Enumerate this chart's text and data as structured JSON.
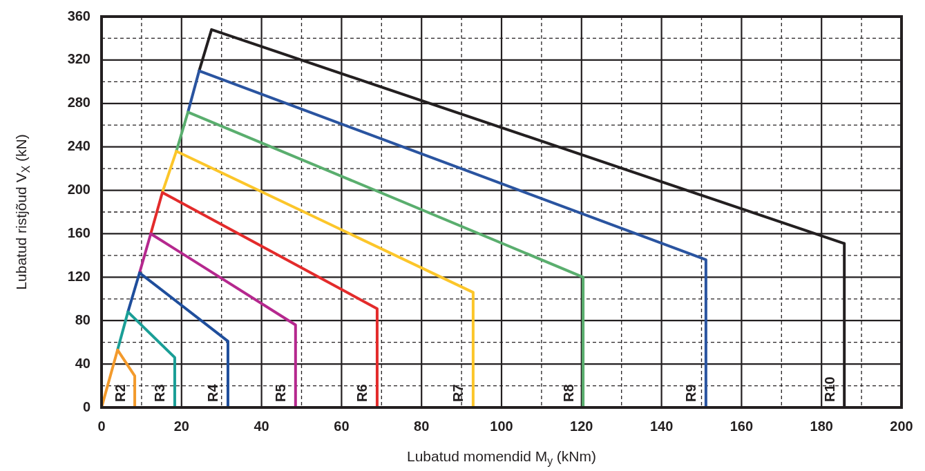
{
  "chart_data": {
    "type": "line",
    "xlabel": "Lubatud momendid M$_{y}$ (kNm)",
    "ylabel": "Lubatud ristjõud V$_{X}$ (kN)",
    "xlim": [
      0,
      200
    ],
    "xticks": [
      0,
      {
        "value": 10,
        "label": null
      },
      20,
      {
        "value": 30,
        "label": null
      },
      40,
      {
        "value": 50,
        "label": null
      },
      60,
      {
        "value": 70,
        "label": null
      },
      80,
      {
        "value": 90,
        "label": null
      },
      100,
      {
        "value": 110,
        "label": null
      },
      120,
      {
        "value": 130,
        "label": null
      },
      140,
      {
        "value": 150,
        "label": null
      },
      160,
      {
        "value": 170,
        "label": null
      },
      180,
      {
        "value": 190,
        "label": null
      },
      200
    ],
    "ylim": [
      0,
      360
    ],
    "yticks": [
      0,
      {
        "value": 20,
        "label": null
      },
      40,
      {
        "value": 60,
        "label": null
      },
      80,
      {
        "value": 100,
        "label": null
      },
      120,
      {
        "value": 140,
        "label": null
      },
      160,
      {
        "value": 180,
        "label": null
      },
      200,
      {
        "value": 220,
        "label": null
      },
      240,
      {
        "value": 260,
        "label": null
      },
      280,
      {
        "value": 300,
        "label": null
      },
      320,
      {
        "value": 340,
        "label": null
      },
      360
    ],
    "grid": true,
    "legend": false,
    "marker": "none",
    "line_style": "solid",
    "series": [
      {
        "name": "R2",
        "color": "#f39a2c",
        "x": [
          0,
          4,
          8.3,
          8.3
        ],
        "values": [
          0,
          53,
          29,
          0
        ]
      },
      {
        "name": "R3",
        "color": "#1a9e96",
        "x": [
          4,
          6.6,
          18.3,
          18.3
        ],
        "values": [
          53,
          88,
          46,
          0
        ]
      },
      {
        "name": "R4",
        "color": "#1f4e9c",
        "x": [
          6.6,
          9.5,
          31.6,
          31.6
        ],
        "values": [
          88,
          124,
          61,
          0
        ]
      },
      {
        "name": "R5",
        "color": "#b5288e",
        "x": [
          9.5,
          12.3,
          48.5,
          48.5
        ],
        "values": [
          124,
          160,
          76,
          0
        ]
      },
      {
        "name": "R6",
        "color": "#e32b2b",
        "x": [
          12.3,
          15.2,
          68.9,
          68.9
        ],
        "values": [
          160,
          198,
          91,
          0
        ]
      },
      {
        "name": "R7",
        "color": "#fcc62a",
        "x": [
          15.2,
          18.7,
          92.9,
          92.9
        ],
        "values": [
          198,
          236,
          106,
          0
        ]
      },
      {
        "name": "R8",
        "color": "#5aae6e",
        "x": [
          18.7,
          21.6,
          120.4,
          120.4
        ],
        "values": [
          236,
          272,
          120,
          0
        ]
      },
      {
        "name": "R9",
        "color": "#2a54a0",
        "x": [
          21.6,
          24.4,
          151.1,
          151.1
        ],
        "values": [
          272,
          310,
          136,
          0
        ]
      },
      {
        "name": "R10",
        "color": "#231f20",
        "x": [
          24.4,
          27.5,
          185.7,
          185.7
        ],
        "values": [
          310,
          348,
          151,
          0
        ]
      }
    ]
  }
}
